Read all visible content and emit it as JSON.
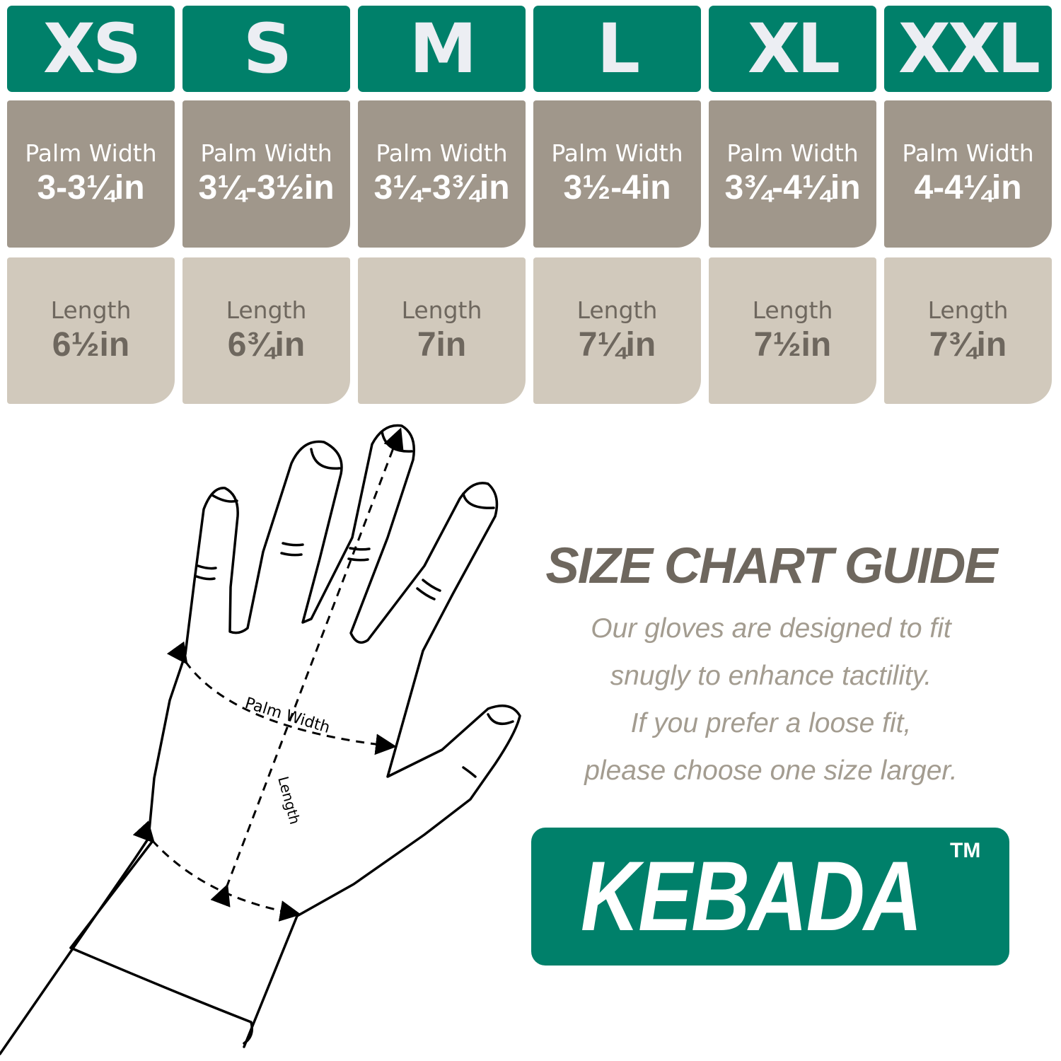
{
  "colors": {
    "header": "#00806a",
    "palm_cell": "#a0978b",
    "length_cell": "#d1c9bc",
    "text_dark": "#6e675e",
    "logo": "#00806a"
  },
  "sizes": [
    {
      "size": "XS",
      "palm_label": "Palm Width",
      "palm": "3-3¼in",
      "length_label": "Length",
      "length": "6½in"
    },
    {
      "size": "S",
      "palm_label": "Palm Width",
      "palm": "3¼-3½in",
      "length_label": "Length",
      "length": "6¾in"
    },
    {
      "size": "M",
      "palm_label": "Palm Width",
      "palm": "3¼-3¾in",
      "length_label": "Length",
      "length": "7in"
    },
    {
      "size": "L",
      "palm_label": "Palm Width",
      "palm": "3½-4in",
      "length_label": "Length",
      "length": "7¼in"
    },
    {
      "size": "XL",
      "palm_label": "Palm Width",
      "palm": "3¾-4¼in",
      "length_label": "Length",
      "length": "7½in"
    },
    {
      "size": "XXL",
      "palm_label": "Palm Width",
      "palm": "4-4¼in",
      "length_label": "Length",
      "length": "7¾in"
    }
  ],
  "diagram": {
    "palm_width_label": "Palm Width",
    "length_label": "Length"
  },
  "title": "SIZE CHART GUIDE",
  "description": [
    "Our gloves are designed to fit",
    "snugly to enhance tactility.",
    "If you prefer a loose fit,",
    "please choose one size larger."
  ],
  "logo": {
    "brand": "KEBADA",
    "tm": "TM"
  }
}
